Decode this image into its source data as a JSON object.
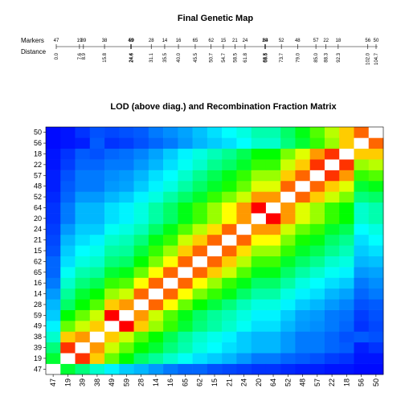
{
  "chart_data": [
    {
      "type": "map",
      "title": "Final Genetic Map",
      "row_labels": [
        "Markers",
        "Distance"
      ],
      "markers": [
        {
          "name": "47",
          "pos": 0.0
        },
        {
          "name": "19",
          "pos": 7.6
        },
        {
          "name": "39",
          "pos": 8.9
        },
        {
          "name": "38",
          "pos": 15.8
        },
        {
          "name": "49",
          "pos": 24.4
        },
        {
          "name": "59",
          "pos": 24.6
        },
        {
          "name": "28",
          "pos": 31.1
        },
        {
          "name": "14",
          "pos": 35.5
        },
        {
          "name": "16",
          "pos": 40.0
        },
        {
          "name": "65",
          "pos": 45.5
        },
        {
          "name": "62",
          "pos": 50.7
        },
        {
          "name": "15",
          "pos": 54.7
        },
        {
          "name": "21",
          "pos": 58.5
        },
        {
          "name": "24",
          "pos": 61.8
        },
        {
          "name": "20",
          "pos": 68.3
        },
        {
          "name": "64",
          "pos": 68.5
        },
        {
          "name": "52",
          "pos": 73.7
        },
        {
          "name": "48",
          "pos": 79.0
        },
        {
          "name": "57",
          "pos": 85.0
        },
        {
          "name": "22",
          "pos": 88.3
        },
        {
          "name": "18",
          "pos": 92.3
        },
        {
          "name": "56",
          "pos": 102.0
        },
        {
          "name": "50",
          "pos": 104.7
        }
      ],
      "distance_labels": [
        "0.0",
        "7.6",
        "8.9",
        "15.8",
        "24.4",
        "24.6",
        "31.1",
        "35.5",
        "40.0",
        "45.5",
        "50.7",
        "54.7",
        "58.5",
        "61.8",
        "68.3",
        "68.5",
        "73.7",
        "79.0",
        "85.0",
        "88.3",
        "92.3",
        "102.0",
        "104.7"
      ],
      "marker_labels": [
        "47",
        "19",
        "39",
        "38",
        "49",
        "59",
        "28",
        "14",
        "16",
        "65",
        "62",
        "15",
        "21",
        "24",
        "20",
        "64",
        "52",
        "48",
        "57",
        "22",
        "18",
        "56",
        "50"
      ]
    },
    {
      "type": "heatmap",
      "title": "LOD (above diag.) and Recombination Fraction Matrix",
      "x_labels": [
        "47",
        "19",
        "39",
        "38",
        "49",
        "59",
        "28",
        "14",
        "16",
        "65",
        "62",
        "15",
        "21",
        "24",
        "20",
        "64",
        "52",
        "48",
        "57",
        "22",
        "18",
        "56",
        "50"
      ],
      "y_labels": [
        "47",
        "19",
        "39",
        "38",
        "49",
        "59",
        "28",
        "14",
        "16",
        "65",
        "62",
        "15",
        "21",
        "24",
        "20",
        "64",
        "52",
        "48",
        "57",
        "22",
        "18",
        "56",
        "50"
      ],
      "colormap": "rainbow",
      "color_low": "#0000ff",
      "color_high": "#ff0000",
      "diagonal_color": "#ffffff",
      "matrix_note": "cell values are on a 0-1 colour-scale position (0 = blue, 1 = red)",
      "values": [
        [
          null,
          0.45,
          0.38,
          0.3,
          0.24,
          0.2,
          0.18,
          0.15,
          0.12,
          0.1,
          0.1,
          0.08,
          0.07,
          0.06,
          0.05,
          0.05,
          0.04,
          0.03,
          0.03,
          0.02,
          0.02,
          0.01,
          0.01
        ],
        [
          0.45,
          null,
          0.95,
          0.8,
          0.6,
          0.5,
          0.4,
          0.35,
          0.3,
          0.26,
          0.22,
          0.2,
          0.18,
          0.15,
          0.12,
          0.12,
          0.1,
          0.09,
          0.08,
          0.06,
          0.05,
          0.02,
          0.02
        ],
        [
          0.38,
          0.95,
          null,
          0.85,
          0.7,
          0.6,
          0.5,
          0.45,
          0.38,
          0.33,
          0.28,
          0.25,
          0.22,
          0.2,
          0.18,
          0.18,
          0.15,
          0.12,
          0.12,
          0.1,
          0.09,
          0.03,
          0.05
        ],
        [
          0.3,
          0.8,
          0.85,
          null,
          0.8,
          0.7,
          0.58,
          0.5,
          0.42,
          0.35,
          0.3,
          0.27,
          0.24,
          0.2,
          0.18,
          0.18,
          0.15,
          0.12,
          0.12,
          0.1,
          0.08,
          0.09,
          0.08
        ],
        [
          0.24,
          0.6,
          0.7,
          0.8,
          null,
          1.0,
          0.8,
          0.65,
          0.55,
          0.45,
          0.38,
          0.34,
          0.3,
          0.26,
          0.22,
          0.22,
          0.18,
          0.15,
          0.14,
          0.12,
          0.1,
          0.05,
          0.07
        ],
        [
          0.2,
          0.5,
          0.6,
          0.7,
          1.0,
          null,
          0.85,
          0.7,
          0.58,
          0.48,
          0.4,
          0.35,
          0.32,
          0.28,
          0.24,
          0.24,
          0.2,
          0.16,
          0.15,
          0.12,
          0.11,
          0.06,
          0.08
        ],
        [
          0.18,
          0.4,
          0.5,
          0.58,
          0.8,
          0.85,
          null,
          0.9,
          0.75,
          0.6,
          0.5,
          0.44,
          0.38,
          0.32,
          0.28,
          0.28,
          0.24,
          0.2,
          0.18,
          0.15,
          0.13,
          0.08,
          0.09
        ],
        [
          0.15,
          0.35,
          0.45,
          0.5,
          0.65,
          0.7,
          0.9,
          null,
          0.9,
          0.75,
          0.62,
          0.55,
          0.48,
          0.4,
          0.34,
          0.34,
          0.28,
          0.24,
          0.22,
          0.18,
          0.16,
          0.1,
          0.12
        ],
        [
          0.12,
          0.3,
          0.38,
          0.42,
          0.55,
          0.58,
          0.75,
          0.9,
          null,
          0.9,
          0.75,
          0.65,
          0.55,
          0.48,
          0.4,
          0.4,
          0.34,
          0.28,
          0.25,
          0.22,
          0.2,
          0.12,
          0.14
        ],
        [
          0.1,
          0.26,
          0.33,
          0.35,
          0.45,
          0.48,
          0.6,
          0.75,
          0.9,
          null,
          0.9,
          0.8,
          0.7,
          0.58,
          0.48,
          0.48,
          0.4,
          0.34,
          0.3,
          0.26,
          0.24,
          0.15,
          0.16
        ],
        [
          0.1,
          0.22,
          0.28,
          0.3,
          0.38,
          0.4,
          0.5,
          0.62,
          0.75,
          0.9,
          null,
          0.9,
          0.8,
          0.68,
          0.56,
          0.56,
          0.46,
          0.4,
          0.36,
          0.3,
          0.28,
          0.18,
          0.19
        ],
        [
          0.08,
          0.2,
          0.25,
          0.27,
          0.34,
          0.35,
          0.44,
          0.55,
          0.65,
          0.8,
          0.9,
          null,
          0.9,
          0.78,
          0.65,
          0.65,
          0.55,
          0.46,
          0.42,
          0.36,
          0.32,
          0.2,
          0.22
        ],
        [
          0.07,
          0.18,
          0.22,
          0.24,
          0.3,
          0.32,
          0.38,
          0.48,
          0.55,
          0.7,
          0.8,
          0.9,
          null,
          0.9,
          0.75,
          0.75,
          0.62,
          0.52,
          0.48,
          0.4,
          0.36,
          0.22,
          0.25
        ],
        [
          0.06,
          0.15,
          0.2,
          0.2,
          0.26,
          0.28,
          0.32,
          0.4,
          0.48,
          0.58,
          0.68,
          0.78,
          0.9,
          null,
          0.85,
          0.85,
          0.7,
          0.6,
          0.55,
          0.46,
          0.42,
          0.25,
          0.28
        ],
        [
          0.05,
          0.12,
          0.18,
          0.18,
          0.22,
          0.24,
          0.28,
          0.34,
          0.4,
          0.48,
          0.56,
          0.65,
          0.75,
          0.85,
          null,
          1.0,
          0.85,
          0.72,
          0.65,
          0.55,
          0.5,
          0.3,
          0.33
        ],
        [
          0.05,
          0.12,
          0.18,
          0.18,
          0.22,
          0.24,
          0.28,
          0.34,
          0.4,
          0.48,
          0.56,
          0.65,
          0.75,
          0.85,
          1.0,
          null,
          0.85,
          0.72,
          0.65,
          0.55,
          0.5,
          0.3,
          0.33
        ],
        [
          0.04,
          0.1,
          0.15,
          0.15,
          0.18,
          0.2,
          0.24,
          0.28,
          0.34,
          0.4,
          0.46,
          0.55,
          0.62,
          0.7,
          0.85,
          0.85,
          null,
          0.9,
          0.8,
          0.7,
          0.62,
          0.38,
          0.4
        ],
        [
          0.03,
          0.09,
          0.12,
          0.12,
          0.15,
          0.16,
          0.2,
          0.24,
          0.28,
          0.34,
          0.4,
          0.46,
          0.52,
          0.6,
          0.72,
          0.72,
          0.9,
          null,
          0.9,
          0.8,
          0.72,
          0.45,
          0.48
        ],
        [
          0.03,
          0.08,
          0.12,
          0.12,
          0.14,
          0.15,
          0.18,
          0.22,
          0.25,
          0.3,
          0.36,
          0.42,
          0.48,
          0.55,
          0.65,
          0.65,
          0.8,
          0.9,
          null,
          0.95,
          0.85,
          0.55,
          0.58
        ],
        [
          0.02,
          0.06,
          0.1,
          0.1,
          0.12,
          0.12,
          0.15,
          0.18,
          0.22,
          0.26,
          0.3,
          0.36,
          0.4,
          0.46,
          0.55,
          0.55,
          0.7,
          0.8,
          0.95,
          null,
          0.95,
          0.65,
          0.68
        ],
        [
          0.02,
          0.05,
          0.09,
          0.08,
          0.1,
          0.11,
          0.13,
          0.16,
          0.2,
          0.24,
          0.28,
          0.32,
          0.36,
          0.42,
          0.5,
          0.5,
          0.62,
          0.72,
          0.85,
          0.95,
          null,
          0.8,
          0.8
        ],
        [
          0.01,
          0.02,
          0.03,
          0.09,
          0.05,
          0.06,
          0.08,
          0.1,
          0.12,
          0.15,
          0.18,
          0.2,
          0.22,
          0.25,
          0.3,
          0.3,
          0.38,
          0.45,
          0.55,
          0.65,
          0.8,
          null,
          0.9
        ],
        [
          0.01,
          0.02,
          0.05,
          0.08,
          0.07,
          0.08,
          0.09,
          0.12,
          0.14,
          0.16,
          0.19,
          0.22,
          0.25,
          0.28,
          0.33,
          0.33,
          0.4,
          0.48,
          0.58,
          0.68,
          0.8,
          0.9,
          null
        ]
      ]
    }
  ]
}
